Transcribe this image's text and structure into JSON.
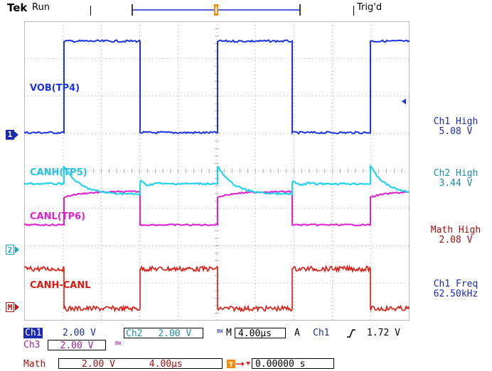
{
  "header": {
    "brand": "Tek",
    "status": "Run",
    "trigger_status": "Trig'd"
  },
  "waveform_labels": {
    "ch1": "VOB(TP4)",
    "ch2_high": "CANH(TP5)",
    "ch2_low": "CANL(TP6)",
    "math": "CANH-CANL"
  },
  "channel_markers": {
    "ch1": "1",
    "ch2": "2",
    "math": "M"
  },
  "measurements": [
    {
      "label": "Ch1 High",
      "value": "5.08 V"
    },
    {
      "label": "Ch2 High",
      "value": "3.44 V"
    },
    {
      "label": "Math High",
      "value": "2.08 V"
    },
    {
      "label": "Ch1 Freq",
      "value": "62.50kHz"
    }
  ],
  "bottom": {
    "ch1_label": "Ch1",
    "ch1_scale": "2.00 V",
    "ch2_label": "Ch2",
    "ch2_scale": "2.00 V",
    "bw_glyph": "BW",
    "timebase_label": "M",
    "timebase": "4.00µs",
    "trigger_mode": "A",
    "trigger_source": "Ch1",
    "trigger_level": "1.72 V",
    "ch3_label": "Ch3",
    "ch3_scale": "2.00 V",
    "math_label": "Math",
    "math_scale": "2.00 V",
    "math_time": "4.00µs",
    "trigger_offset": "0.00000 s"
  },
  "colors": {
    "ch1": "#1a33e6",
    "ch2": "#22d4ec",
    "ch2_low": "#e020d0",
    "math": "#e01810",
    "grid": "#9a9a9a"
  }
}
